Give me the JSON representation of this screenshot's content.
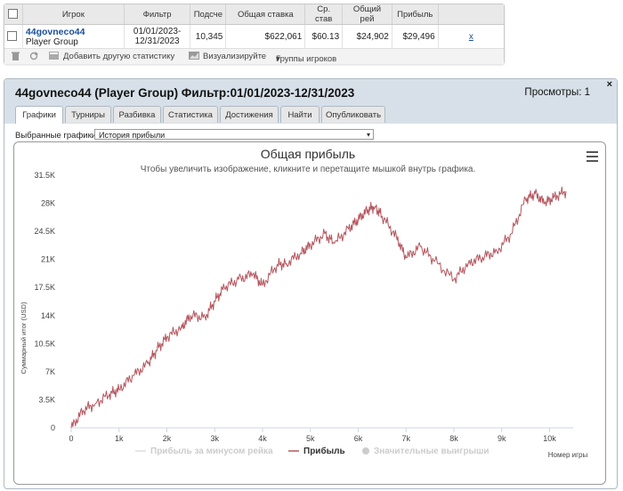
{
  "stats_table": {
    "headers": [
      "Игрок",
      "Фильтр",
      "Подсче",
      "Общая ставка",
      "Ср. став",
      "Общий рей",
      "Прибыль"
    ],
    "row": {
      "player_name": "44govneco44",
      "player_group": "Player Group",
      "filter_line1": "01/01/2023-",
      "filter_line2": "12/31/2023",
      "count": "10,345",
      "total_bet": "$622,061",
      "avg_bet": "$60.13",
      "total_rake": "$24,902",
      "profit": "$29,496",
      "remove_link": "x"
    }
  },
  "toolbar": {
    "add_stats": "Добавить другую статистику",
    "visualize": "Визуализируйте",
    "player_groups": "Группы игроков"
  },
  "dialog": {
    "title": "44govneco44 (Player Group) Фильтр:01/01/2023-12/31/2023",
    "views": "Просмотры: 1",
    "close": "×",
    "tabs": [
      "Графики",
      "Турниры",
      "Разбивка",
      "Статистика",
      "Достижения",
      "Найти",
      "Опубликовать"
    ],
    "active_tab": 0,
    "chart_select_label": "Выбранные графики:",
    "chart_select_value": "История прибыли"
  },
  "chart_data": {
    "type": "line",
    "title": "Общая прибыль",
    "subtitle": "Чтобы увеличить изображение, кликните и перетащите мышкой внутрь графика.",
    "xlabel": "Номер игры",
    "ylabel": "Суммарный итог (USD)",
    "xlim": [
      0,
      10345
    ],
    "ylim": [
      0,
      31500
    ],
    "x_ticks": [
      "0",
      "1k",
      "2k",
      "3k",
      "4k",
      "5k",
      "6k",
      "7k",
      "8k",
      "9k",
      "10k"
    ],
    "y_ticks": [
      "0",
      "3.5K",
      "7K",
      "10.5K",
      "14K",
      "17.5K",
      "21K",
      "24.5K",
      "28K",
      "31.5K"
    ],
    "series": [
      {
        "name": "Прибыль",
        "color": "#b5555d",
        "x": [
          0,
          250,
          500,
          800,
          1000,
          1300,
          1600,
          1800,
          2000,
          2300,
          2500,
          2800,
          3000,
          3200,
          3500,
          3800,
          4000,
          4300,
          4500,
          4800,
          5000,
          5300,
          5500,
          5800,
          6000,
          6200,
          6350,
          6500,
          6800,
          7000,
          7300,
          7600,
          8000,
          8300,
          8600,
          8900,
          9200,
          9500,
          9700,
          9900,
          10100,
          10345
        ],
        "values": [
          0,
          2200,
          3000,
          4200,
          4800,
          6500,
          8000,
          9800,
          11300,
          12500,
          14000,
          13800,
          15800,
          17500,
          18500,
          19200,
          17800,
          20300,
          20500,
          21800,
          22800,
          24200,
          23000,
          24800,
          26000,
          27200,
          27600,
          26400,
          23800,
          21200,
          22600,
          20800,
          18500,
          20500,
          21300,
          22000,
          24200,
          28500,
          29200,
          28000,
          28800,
          29500
        ]
      },
      {
        "name": "Прибыль за минусом рейка",
        "color": "#e3e3e3"
      },
      {
        "name": "Значительные выигрыши",
        "color": "#e3e3e3"
      }
    ],
    "legend_position": "bottom",
    "grid": false
  }
}
